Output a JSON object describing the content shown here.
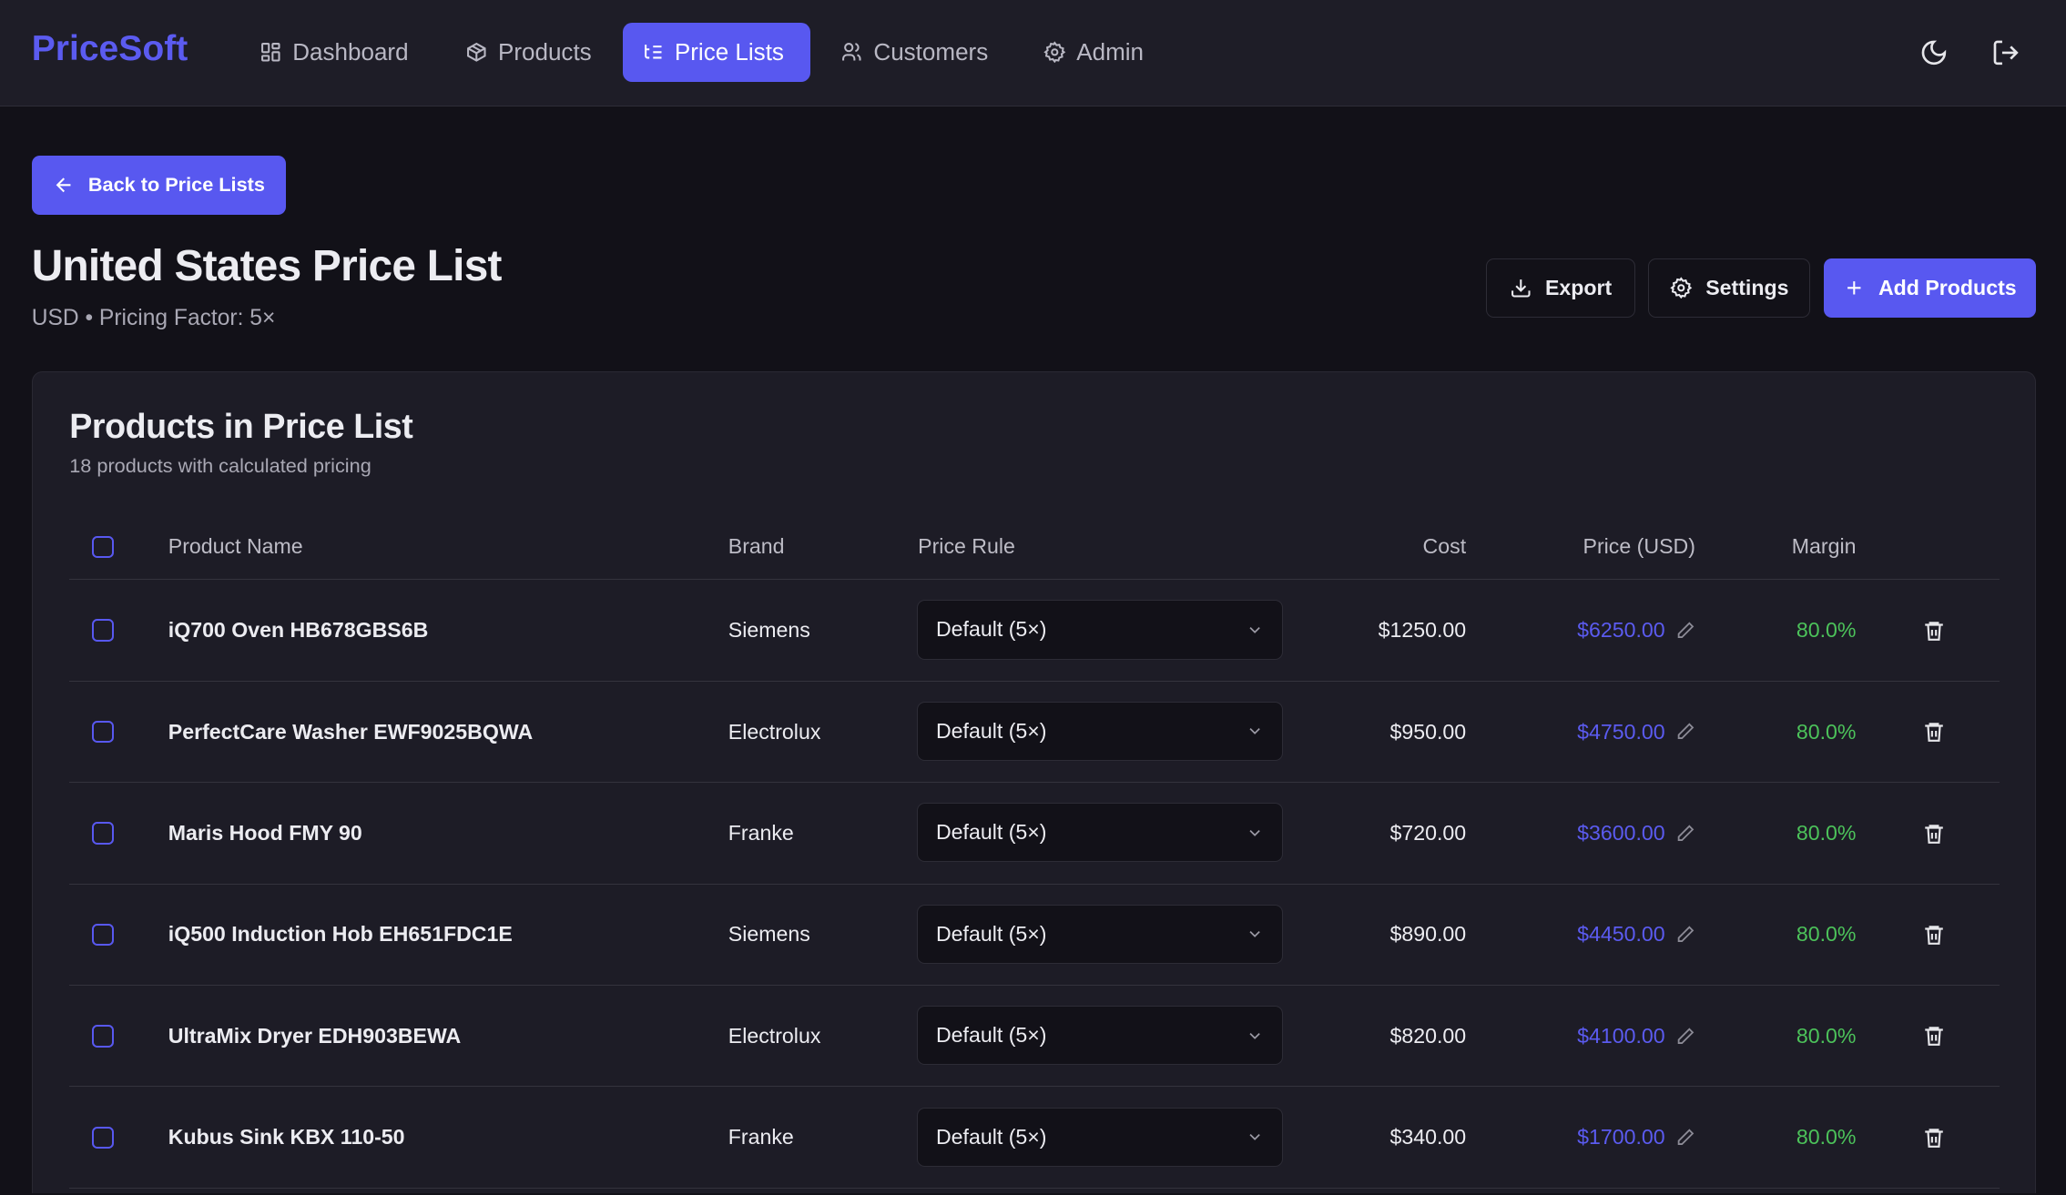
{
  "app": {
    "logo": "PriceSoft",
    "brand_color": "#5b5bf0"
  },
  "nav": {
    "items": [
      {
        "label": "Dashboard",
        "icon": "grid-icon",
        "active": false
      },
      {
        "label": "Products",
        "icon": "package-icon",
        "active": false
      },
      {
        "label": "Price Lists",
        "icon": "list-icon",
        "active": true
      },
      {
        "label": "Customers",
        "icon": "users-icon",
        "active": false
      },
      {
        "label": "Admin",
        "icon": "gear-icon",
        "active": false
      }
    ],
    "theme_icon": "moon-icon",
    "logout_icon": "logout-icon"
  },
  "page": {
    "back_label": "Back to Price Lists",
    "title": "United States Price List",
    "subtitle": "USD • Pricing Factor: 5×",
    "export_label": "Export",
    "settings_label": "Settings",
    "add_label": "Add Products"
  },
  "card": {
    "title": "Products in Price List",
    "subtitle": "18 products with calculated pricing",
    "columns": {
      "name": "Product Name",
      "brand": "Brand",
      "rule": "Price Rule",
      "cost": "Cost",
      "price": "Price (USD)",
      "margin": "Margin"
    },
    "rows": [
      {
        "name": "iQ700 Oven HB678GBS6B",
        "brand": "Siemens",
        "rule": "Default (5×)",
        "cost": "$1250.00",
        "price": "$6250.00",
        "margin": "80.0%"
      },
      {
        "name": "PerfectCare Washer EWF9025BQWA",
        "brand": "Electrolux",
        "rule": "Default (5×)",
        "cost": "$950.00",
        "price": "$4750.00",
        "margin": "80.0%"
      },
      {
        "name": "Maris Hood FMY 90",
        "brand": "Franke",
        "rule": "Default (5×)",
        "cost": "$720.00",
        "price": "$3600.00",
        "margin": "80.0%"
      },
      {
        "name": "iQ500 Induction Hob EH651FDC1E",
        "brand": "Siemens",
        "rule": "Default (5×)",
        "cost": "$890.00",
        "price": "$4450.00",
        "margin": "80.0%"
      },
      {
        "name": "UltraMix Dryer EDH903BEWA",
        "brand": "Electrolux",
        "rule": "Default (5×)",
        "cost": "$820.00",
        "price": "$4100.00",
        "margin": "80.0%"
      },
      {
        "name": "Kubus Sink KBX 110-50",
        "brand": "Franke",
        "rule": "Default (5×)",
        "cost": "$340.00",
        "price": "$1700.00",
        "margin": "80.0%"
      }
    ]
  },
  "colors": {
    "accent": "#5858f0",
    "price": "#5b5bf0",
    "margin": "#4cc25a",
    "background": "#121118",
    "surface": "#1d1c26"
  }
}
